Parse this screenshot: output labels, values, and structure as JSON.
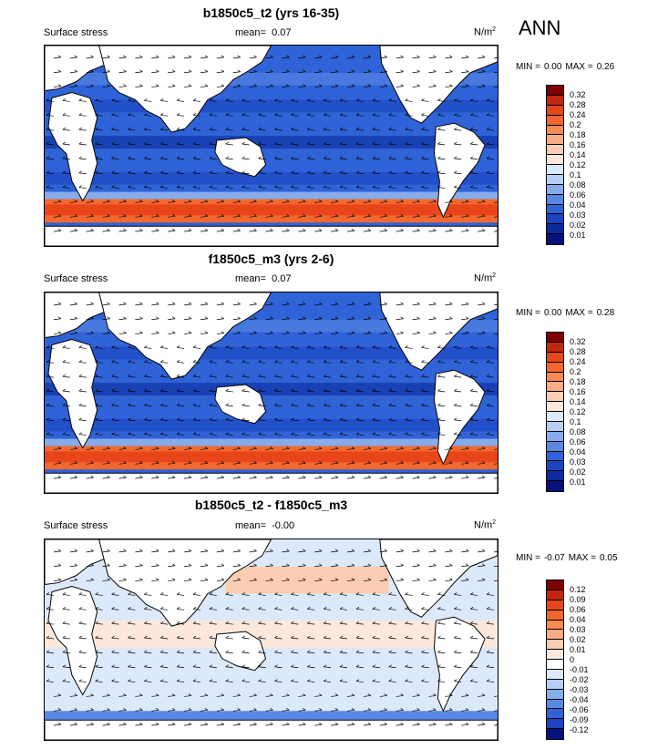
{
  "season": "ANN",
  "panels": [
    {
      "title": "b1850c5_t2 (yrs 16-35)",
      "left_label": "Surface stress",
      "mean_label": "mean=",
      "mean_value": "0.07",
      "units": "N/m",
      "units_sup": "2",
      "min_label": "MIN =",
      "min_value": "0.00",
      "max_label": "MAX =",
      "max_value": "0.26",
      "colorbar_ticks": [
        "0.32",
        "0.28",
        "0.24",
        "0.2",
        "0.18",
        "0.16",
        "0.14",
        "0.12",
        "0.1",
        "0.08",
        "0.06",
        "0.04",
        "0.03",
        "0.02",
        "0.01"
      ]
    },
    {
      "title": "f1850c5_m3 (yrs 2-6)",
      "left_label": "Surface stress",
      "mean_label": "mean=",
      "mean_value": "0.07",
      "units": "N/m",
      "units_sup": "2",
      "min_label": "MIN =",
      "min_value": "0.00",
      "max_label": "MAX =",
      "max_value": "0.28",
      "colorbar_ticks": [
        "0.32",
        "0.28",
        "0.24",
        "0.2",
        "0.18",
        "0.16",
        "0.14",
        "0.12",
        "0.1",
        "0.08",
        "0.06",
        "0.04",
        "0.03",
        "0.02",
        "0.01"
      ]
    },
    {
      "title": "b1850c5_t2 - f1850c5_m3",
      "left_label": "Surface stress",
      "mean_label": "mean=",
      "mean_value": "-0.00",
      "units": "N/m",
      "units_sup": "2",
      "min_label": "MIN =",
      "min_value": "-0.07",
      "max_label": "MAX =",
      "max_value": "0.05",
      "colorbar_ticks": [
        "0.12",
        "0.09",
        "0.06",
        "0.04",
        "0.03",
        "0.02",
        "0.01",
        "0",
        "-0.01",
        "-0.02",
        "-0.03",
        "-0.04",
        "-0.06",
        "-0.09",
        "-0.12"
      ]
    }
  ],
  "colors": {
    "abs_scale": [
      "#7f0000",
      "#c2260d",
      "#e8461a",
      "#f2682e",
      "#f68b55",
      "#f8ad86",
      "#fbcdb2",
      "#fde8dc",
      "#dce9fb",
      "#b7cff4",
      "#86acec",
      "#5888e2",
      "#2f63d7",
      "#1b44c0",
      "#0b2a9f",
      "#06127a"
    ],
    "diff_scale": [
      "#7f0000",
      "#c2260d",
      "#e8461a",
      "#f2682e",
      "#f68b55",
      "#f8ad86",
      "#fbcdb2",
      "#fde8dc",
      "#ffffff",
      "#dce9fb",
      "#b7cff4",
      "#86acec",
      "#5888e2",
      "#2f63d7",
      "#1b44c0",
      "#06127a"
    ]
  }
}
